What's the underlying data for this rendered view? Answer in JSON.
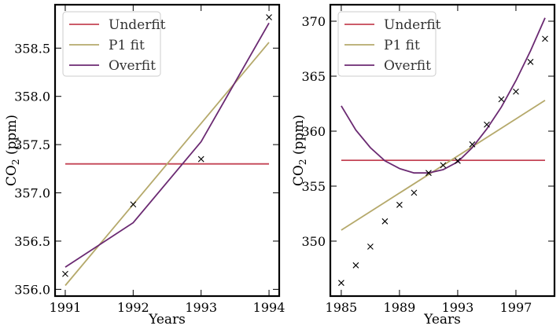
{
  "chart_data": [
    {
      "type": "line",
      "panel": "left",
      "xlabel": "Years",
      "ylabel": "CO2 (ppm)",
      "x_ticks": [
        "1991",
        "1992",
        "1993",
        "1994"
      ],
      "y_ticks": [
        "356.0",
        "356.5",
        "357.0",
        "357.5",
        "358.0",
        "358.5"
      ],
      "xlim": [
        1990.85,
        1994.15
      ],
      "ylim": [
        355.93,
        358.95
      ],
      "grid": false,
      "legend_position": "upper left",
      "x": [
        1991,
        1992,
        1993,
        1994
      ],
      "scatter": {
        "name": "data",
        "marker": "x",
        "color": "#000000",
        "values": [
          356.16,
          356.88,
          357.35,
          358.82
        ]
      },
      "series": [
        {
          "name": "Underfit",
          "color": "#c44455",
          "x": [
            1991,
            1994
          ],
          "values": [
            357.3,
            357.3
          ]
        },
        {
          "name": "P1 fit",
          "color": "#b5a96b",
          "x": [
            1991,
            1994
          ],
          "values": [
            356.04,
            358.56
          ]
        },
        {
          "name": "Overfit",
          "color": "#6b2a72",
          "x": [
            1991,
            1992,
            1993,
            1994
          ],
          "values": [
            356.23,
            356.69,
            357.53,
            358.76
          ]
        }
      ]
    },
    {
      "type": "line",
      "panel": "right",
      "xlabel": "Years",
      "ylabel": "CO2 (ppm)",
      "x_ticks": [
        "1985",
        "1989",
        "1993",
        "1997"
      ],
      "y_ticks": [
        "350",
        "355",
        "360",
        "365",
        "370"
      ],
      "xlim": [
        1984.25,
        1999.65
      ],
      "ylim": [
        345.0,
        371.5
      ],
      "grid": false,
      "legend_position": "upper left",
      "x": [
        1985,
        1986,
        1987,
        1988,
        1989,
        1990,
        1991,
        1992,
        1993,
        1994,
        1995,
        1996,
        1997,
        1998,
        1999
      ],
      "scatter": {
        "name": "data",
        "marker": "x",
        "color": "#000000",
        "values": [
          346.2,
          347.8,
          349.5,
          351.8,
          353.3,
          354.4,
          356.2,
          356.9,
          357.3,
          358.8,
          360.6,
          362.9,
          363.6,
          366.3,
          368.4
        ]
      },
      "series": [
        {
          "name": "Underfit",
          "color": "#c44455",
          "x": [
            1985,
            1999
          ],
          "values": [
            357.35,
            357.35
          ]
        },
        {
          "name": "P1 fit",
          "color": "#b5a96b",
          "x": [
            1985,
            1999
          ],
          "values": [
            351.0,
            362.8
          ]
        },
        {
          "name": "Overfit",
          "color": "#6b2a72",
          "x": [
            1985,
            1986,
            1987,
            1988,
            1989,
            1990,
            1991,
            1992,
            1993,
            1994,
            1995,
            1996,
            1997,
            1998,
            1999
          ],
          "values": [
            362.3,
            360.1,
            358.5,
            357.3,
            356.6,
            356.2,
            356.2,
            356.5,
            357.2,
            358.5,
            360.2,
            362.2,
            364.6,
            367.3,
            370.3
          ]
        }
      ]
    }
  ],
  "legend": {
    "items": [
      "Underfit",
      "P1 fit",
      "Overfit"
    ]
  },
  "labels": {
    "left_xlabel": "Years",
    "left_ylabel_main": "CO",
    "left_ylabel_sub": "2",
    "left_ylabel_unit": " (ppm)",
    "right_xlabel": "Years",
    "right_ylabel_main": "CO",
    "right_ylabel_sub": "2",
    "right_ylabel_unit": " (ppm)"
  }
}
